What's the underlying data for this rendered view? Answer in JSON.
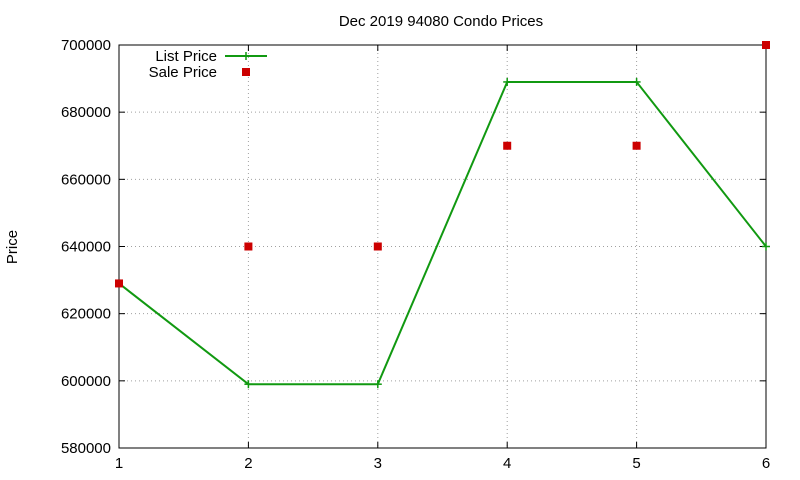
{
  "chart_data": {
    "type": "line",
    "title": "Dec 2019 94080 Condo Prices",
    "xlabel": "",
    "ylabel": "Price",
    "xlim": [
      1,
      6
    ],
    "ylim": [
      580000,
      700000
    ],
    "x_ticks": [
      "1",
      "2",
      "3",
      "4",
      "5",
      "6"
    ],
    "y_ticks": [
      "580000",
      "600000",
      "620000",
      "640000",
      "660000",
      "680000",
      "700000"
    ],
    "grid": true,
    "legend_position": "top-left",
    "series": [
      {
        "name": "List Price",
        "style": "line-with-plus-markers",
        "color": "#119911",
        "x": [
          1,
          2,
          3,
          4,
          5,
          6
        ],
        "y": [
          629000,
          599000,
          599000,
          689000,
          689000,
          640000
        ]
      },
      {
        "name": "Sale Price",
        "style": "square-points",
        "color": "#cc0000",
        "x": [
          1,
          2,
          3,
          4,
          5,
          6
        ],
        "y": [
          629000,
          640000,
          640000,
          670000,
          670000,
          700000
        ]
      }
    ]
  }
}
